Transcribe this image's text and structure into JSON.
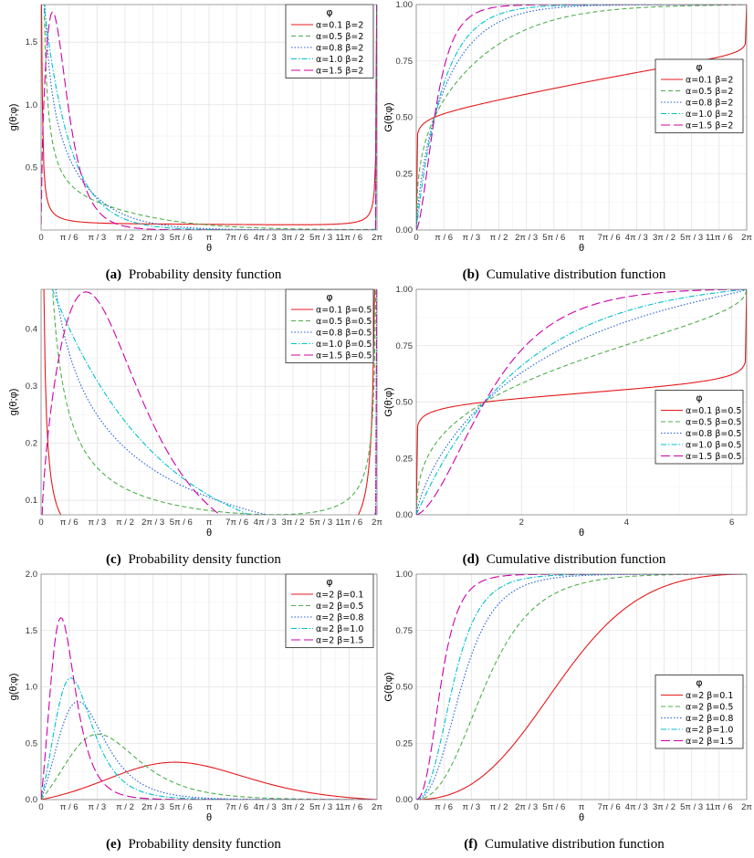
{
  "figure": {
    "captions": [
      {
        "tag": "(a)",
        "text": "Probability density function"
      },
      {
        "tag": "(b)",
        "text": "Cumulative distribution function"
      },
      {
        "tag": "(c)",
        "text": "Probability density function"
      },
      {
        "tag": "(d)",
        "text": "Cumulative distribution function"
      },
      {
        "tag": "(e)",
        "text": "Probability density function"
      },
      {
        "tag": "(f)",
        "text": "Cumulative distribution function"
      }
    ]
  },
  "chart_data": [
    {
      "id": "a",
      "type": "line",
      "kind": "pdf",
      "title": "",
      "xlabel": "θ",
      "ylabel": "g(θ;φ)",
      "xlim": [
        0,
        6.2832
      ],
      "ylim": [
        0,
        1.8
      ],
      "xticks": "pi",
      "yticks": [
        0.5,
        1.0,
        1.5
      ],
      "ytick_labels": [
        "0.5",
        "1.0",
        "1.5"
      ],
      "legend": {
        "title": "φ",
        "placement": "top-right"
      },
      "series": [
        {
          "name": "α=0.1 β=2",
          "alpha": 0.1,
          "beta": 2,
          "color": "#e41a1c",
          "dash": ""
        },
        {
          "name": "α=0.5 β=2",
          "alpha": 0.5,
          "beta": 2,
          "color": "#4daf4a",
          "dash": "5,3"
        },
        {
          "name": "α=0.8 β=2",
          "alpha": 0.8,
          "beta": 2,
          "color": "#1f5fd6",
          "dash": "1.5,2"
        },
        {
          "name": "α=1.0 β=2",
          "alpha": 1.0,
          "beta": 2,
          "color": "#00c0cc",
          "dash": "6,2,1.5,2"
        },
        {
          "name": "α=1.5 β=2",
          "alpha": 1.5,
          "beta": 2,
          "color": "#cc00aa",
          "dash": "10,4"
        }
      ]
    },
    {
      "id": "b",
      "type": "line",
      "kind": "cdf",
      "title": "",
      "xlabel": "θ",
      "ylabel": "G(θ;φ)",
      "xlim": [
        0,
        6.2832
      ],
      "ylim": [
        0,
        1.0
      ],
      "xticks": "pi",
      "yticks": [
        0,
        0.25,
        0.5,
        0.75,
        1.0
      ],
      "ytick_labels": [
        "0.00",
        "0.25",
        "0.50",
        "0.75",
        "1.00"
      ],
      "legend": {
        "title": "φ",
        "placement": "middle-right"
      },
      "series": [
        {
          "name": "α=0.1 β=2",
          "alpha": 0.1,
          "beta": 2,
          "color": "#e41a1c",
          "dash": ""
        },
        {
          "name": "α=0.5 β=2",
          "alpha": 0.5,
          "beta": 2,
          "color": "#4daf4a",
          "dash": "5,3"
        },
        {
          "name": "α=0.8 β=2",
          "alpha": 0.8,
          "beta": 2,
          "color": "#1f5fd6",
          "dash": "1.5,2"
        },
        {
          "name": "α=1.0 β=2",
          "alpha": 1.0,
          "beta": 2,
          "color": "#00c0cc",
          "dash": "6,2,1.5,2"
        },
        {
          "name": "α=1.5 β=2",
          "alpha": 1.5,
          "beta": 2,
          "color": "#cc00aa",
          "dash": "10,4"
        }
      ]
    },
    {
      "id": "c",
      "type": "line",
      "kind": "pdf",
      "title": "",
      "xlabel": "θ",
      "ylabel": "g(θ;φ)",
      "xlim": [
        0,
        6.2832
      ],
      "ylim": [
        0.0745,
        0.47
      ],
      "xticks": "pi",
      "yticks": [
        0.1,
        0.2,
        0.3,
        0.4
      ],
      "ytick_labels": [
        "0.1",
        "0.2",
        "0.3",
        "0.4"
      ],
      "legend": {
        "title": "φ",
        "placement": "top-right"
      },
      "series": [
        {
          "name": "α=0.1 β=0.5",
          "alpha": 0.1,
          "beta": 0.5,
          "color": "#e41a1c",
          "dash": ""
        },
        {
          "name": "α=0.5 β=0.5",
          "alpha": 0.5,
          "beta": 0.5,
          "color": "#4daf4a",
          "dash": "5,3"
        },
        {
          "name": "α=0.8 β=0.5",
          "alpha": 0.8,
          "beta": 0.5,
          "color": "#1f5fd6",
          "dash": "1.5,2"
        },
        {
          "name": "α=1.0 β=0.5",
          "alpha": 1.0,
          "beta": 0.5,
          "color": "#00c0cc",
          "dash": "6,2,1.5,2"
        },
        {
          "name": "α=1.5 β=0.5",
          "alpha": 1.5,
          "beta": 0.5,
          "color": "#cc00aa",
          "dash": "10,4"
        }
      ]
    },
    {
      "id": "d",
      "type": "line",
      "kind": "cdf",
      "title": "",
      "xlabel": "θ",
      "ylabel": "G(θ;φ)",
      "xlim": [
        0,
        6.2832
      ],
      "ylim": [
        0,
        1.0
      ],
      "xticks": [
        2,
        4,
        6
      ],
      "xtick_labels": [
        "2",
        "4",
        "6"
      ],
      "yticks": [
        0,
        0.25,
        0.5,
        0.75,
        1.0
      ],
      "ytick_labels": [
        "0.00",
        "0.25",
        "0.50",
        "0.75",
        "1.00"
      ],
      "legend": {
        "title": "φ",
        "placement": "bottom-right"
      },
      "series": [
        {
          "name": "α=0.1 β=0.5",
          "alpha": 0.1,
          "beta": 0.5,
          "color": "#e41a1c",
          "dash": ""
        },
        {
          "name": "α=0.5 β=0.5",
          "alpha": 0.5,
          "beta": 0.5,
          "color": "#4daf4a",
          "dash": "5,3"
        },
        {
          "name": "α=0.8 β=0.5",
          "alpha": 0.8,
          "beta": 0.5,
          "color": "#1f5fd6",
          "dash": "1.5,2"
        },
        {
          "name": "α=1.0 β=0.5",
          "alpha": 1.0,
          "beta": 0.5,
          "color": "#00c0cc",
          "dash": "6,2,1.5,2"
        },
        {
          "name": "α=1.5 β=0.5",
          "alpha": 1.5,
          "beta": 0.5,
          "color": "#cc00aa",
          "dash": "10,4"
        }
      ]
    },
    {
      "id": "e",
      "type": "line",
      "kind": "pdf",
      "title": "",
      "xlabel": "θ",
      "ylabel": "g(θ;φ)",
      "xlim": [
        0,
        6.2832
      ],
      "ylim": [
        0,
        2.0
      ],
      "xticks": "pi",
      "yticks": [
        0,
        0.5,
        1.0,
        1.5,
        2.0
      ],
      "ytick_labels": [
        "0.0",
        "0.5",
        "1.0",
        "1.5",
        "2.0"
      ],
      "legend": {
        "title": "φ",
        "placement": "top-right"
      },
      "series": [
        {
          "name": "α=2 β=0.1",
          "alpha": 2,
          "beta": 0.1,
          "color": "#e41a1c",
          "dash": ""
        },
        {
          "name": "α=2 β=0.5",
          "alpha": 2,
          "beta": 0.5,
          "color": "#4daf4a",
          "dash": "5,3"
        },
        {
          "name": "α=2 β=0.8",
          "alpha": 2,
          "beta": 0.8,
          "color": "#1f5fd6",
          "dash": "1.5,2"
        },
        {
          "name": "α=2 β=1.0",
          "alpha": 2,
          "beta": 1.0,
          "color": "#00c0cc",
          "dash": "6,2,1.5,2"
        },
        {
          "name": "α=2 β=1.5",
          "alpha": 2,
          "beta": 1.5,
          "color": "#cc00aa",
          "dash": "10,4"
        }
      ]
    },
    {
      "id": "f",
      "type": "line",
      "kind": "cdf",
      "title": "",
      "xlabel": "θ",
      "ylabel": "G(θ;φ)",
      "xlim": [
        0,
        6.2832
      ],
      "ylim": [
        0,
        1.0
      ],
      "xticks": "pi",
      "yticks": [
        0,
        0.25,
        0.5,
        0.75,
        1.0
      ],
      "ytick_labels": [
        "0.00",
        "0.25",
        "0.50",
        "0.75",
        "1.00"
      ],
      "legend": {
        "title": "φ",
        "placement": "bottom-right"
      },
      "series": [
        {
          "name": "α=2 β=0.1",
          "alpha": 2,
          "beta": 0.1,
          "color": "#e41a1c",
          "dash": ""
        },
        {
          "name": "α=2 β=0.5",
          "alpha": 2,
          "beta": 0.5,
          "color": "#4daf4a",
          "dash": "5,3"
        },
        {
          "name": "α=2 β=0.8",
          "alpha": 2,
          "beta": 0.8,
          "color": "#1f5fd6",
          "dash": "1.5,2"
        },
        {
          "name": "α=2 β=1.0",
          "alpha": 2,
          "beta": 1.0,
          "color": "#00c0cc",
          "dash": "6,2,1.5,2"
        },
        {
          "name": "α=2 β=1.5",
          "alpha": 2,
          "beta": 1.5,
          "color": "#cc00aa",
          "dash": "10,4"
        }
      ]
    }
  ],
  "pi_tick_labels": [
    "0",
    "π / 6",
    "π / 3",
    "π / 2",
    "2π / 3",
    "5π / 6",
    "π",
    "7π / 6",
    "4π / 3",
    "3π / 2",
    "5π / 3",
    "11π / 6",
    "2π"
  ]
}
